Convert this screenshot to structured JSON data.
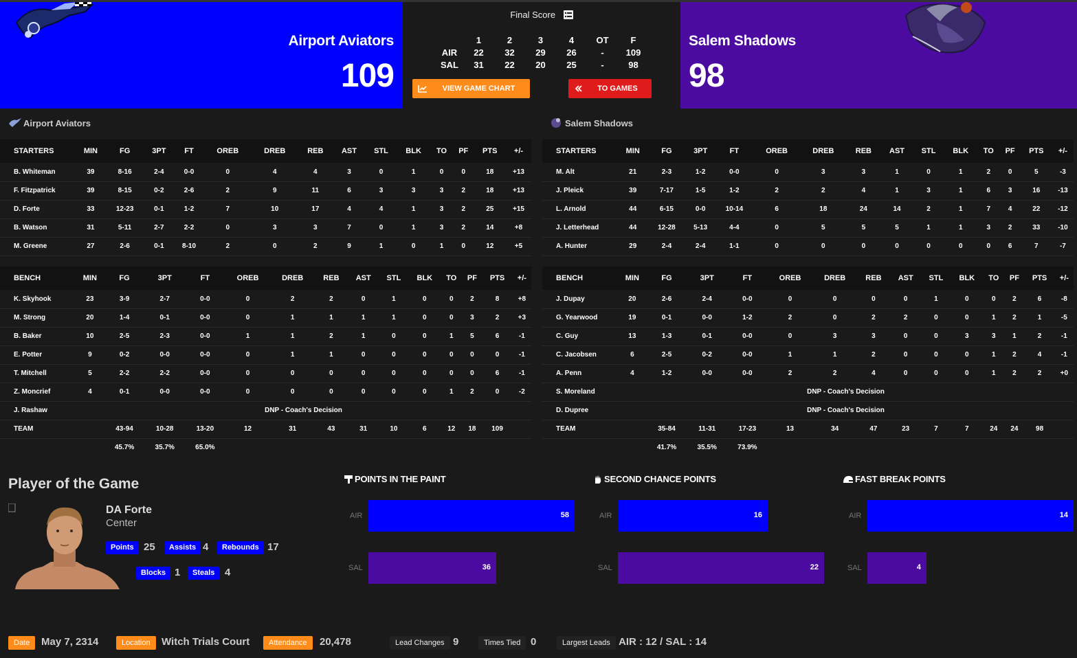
{
  "colors": {
    "home": "#0000ff",
    "away": "#4b0aa0",
    "orange": "#ff8c1a",
    "red": "#e01b1b"
  },
  "header": {
    "home_name": "Airport Aviators",
    "home_score": "109",
    "away_name": "Salem Shadows",
    "away_score": "98",
    "final_label": "Final Score",
    "linescore": {
      "headers": [
        "",
        "1",
        "2",
        "3",
        "4",
        "OT",
        "F"
      ],
      "rows": [
        [
          "AIR",
          "22",
          "32",
          "29",
          "26",
          "-",
          "109"
        ],
        [
          "SAL",
          "31",
          "22",
          "20",
          "25",
          "-",
          "98"
        ]
      ]
    },
    "chart_button": "VIEW GAME CHART",
    "games_button": "TO GAMES"
  },
  "home_box": {
    "title": "Airport Aviators",
    "starters_header": [
      "STARTERS",
      "MIN",
      "FG",
      "3PT",
      "FT",
      "OREB",
      "DREB",
      "REB",
      "AST",
      "STL",
      "BLK",
      "TO",
      "PF",
      "PTS",
      "+/-"
    ],
    "starters": [
      [
        "B. Whiteman",
        "39",
        "8-16",
        "2-4",
        "0-0",
        "0",
        "4",
        "4",
        "3",
        "0",
        "1",
        "0",
        "0",
        "18",
        "+13"
      ],
      [
        "F. Fitzpatrick",
        "39",
        "8-15",
        "0-2",
        "2-6",
        "2",
        "9",
        "11",
        "6",
        "3",
        "3",
        "3",
        "2",
        "18",
        "+13"
      ],
      [
        "D. Forte",
        "33",
        "12-23",
        "0-1",
        "1-2",
        "7",
        "10",
        "17",
        "4",
        "4",
        "1",
        "3",
        "2",
        "25",
        "+15"
      ],
      [
        "B. Watson",
        "31",
        "5-11",
        "2-7",
        "2-2",
        "0",
        "3",
        "3",
        "7",
        "0",
        "1",
        "3",
        "2",
        "14",
        "+8"
      ],
      [
        "M. Greene",
        "27",
        "2-6",
        "0-1",
        "8-10",
        "2",
        "0",
        "2",
        "9",
        "1",
        "0",
        "1",
        "0",
        "12",
        "+5"
      ]
    ],
    "bench_header": [
      "BENCH",
      "MIN",
      "FG",
      "3PT",
      "FT",
      "OREB",
      "DREB",
      "REB",
      "AST",
      "STL",
      "BLK",
      "TO",
      "PF",
      "PTS",
      "+/-"
    ],
    "bench": [
      [
        "K. Skyhook",
        "23",
        "3-9",
        "2-7",
        "0-0",
        "0",
        "2",
        "2",
        "0",
        "1",
        "0",
        "0",
        "2",
        "8",
        "+8"
      ],
      [
        "M. Strong",
        "20",
        "1-4",
        "0-1",
        "0-0",
        "0",
        "1",
        "1",
        "1",
        "1",
        "0",
        "0",
        "3",
        "2",
        "+3"
      ],
      [
        "B. Baker",
        "10",
        "2-5",
        "2-3",
        "0-0",
        "1",
        "1",
        "2",
        "1",
        "0",
        "0",
        "1",
        "5",
        "6",
        "-1"
      ],
      [
        "E. Potter",
        "9",
        "0-2",
        "0-0",
        "0-0",
        "0",
        "1",
        "1",
        "0",
        "0",
        "0",
        "0",
        "0",
        "0",
        "-1"
      ],
      [
        "T. Mitchell",
        "5",
        "2-2",
        "2-2",
        "0-0",
        "0",
        "0",
        "0",
        "0",
        "0",
        "0",
        "0",
        "0",
        "6",
        "-1"
      ],
      [
        "Z. Moncrief",
        "4",
        "0-1",
        "0-0",
        "0-0",
        "0",
        "0",
        "0",
        "0",
        "0",
        "0",
        "1",
        "2",
        "0",
        "-2"
      ]
    ],
    "dnp": [
      {
        "name": "J. Rashaw",
        "reason": "DNP - Coach's Decision"
      }
    ],
    "team": [
      "TEAM",
      "",
      "43-94",
      "10-28",
      "13-20",
      "12",
      "31",
      "43",
      "31",
      "10",
      "6",
      "12",
      "18",
      "109",
      ""
    ],
    "pct": [
      "",
      "",
      "45.7%",
      "35.7%",
      "65.0%",
      "",
      "",
      "",
      "",
      "",
      "",
      "",
      "",
      "",
      ""
    ]
  },
  "away_box": {
    "title": "Salem Shadows",
    "starters_header": [
      "STARTERS",
      "MIN",
      "FG",
      "3PT",
      "FT",
      "OREB",
      "DREB",
      "REB",
      "AST",
      "STL",
      "BLK",
      "TO",
      "PF",
      "PTS",
      "+/-"
    ],
    "starters": [
      [
        "M. Alt",
        "21",
        "2-3",
        "1-2",
        "0-0",
        "0",
        "3",
        "3",
        "1",
        "0",
        "1",
        "2",
        "0",
        "5",
        "-3"
      ],
      [
        "J. Pleick",
        "39",
        "7-17",
        "1-5",
        "1-2",
        "2",
        "2",
        "4",
        "1",
        "3",
        "1",
        "6",
        "3",
        "16",
        "-13"
      ],
      [
        "L. Arnold",
        "44",
        "6-15",
        "0-0",
        "10-14",
        "6",
        "18",
        "24",
        "14",
        "2",
        "1",
        "7",
        "4",
        "22",
        "-12"
      ],
      [
        "J. Letterhead",
        "44",
        "12-28",
        "5-13",
        "4-4",
        "0",
        "5",
        "5",
        "5",
        "1",
        "1",
        "3",
        "2",
        "33",
        "-10"
      ],
      [
        "A. Hunter",
        "29",
        "2-4",
        "2-4",
        "1-1",
        "0",
        "0",
        "0",
        "0",
        "0",
        "0",
        "0",
        "6",
        "7",
        "-7"
      ]
    ],
    "bench_header": [
      "BENCH",
      "MIN",
      "FG",
      "3PT",
      "FT",
      "OREB",
      "DREB",
      "REB",
      "AST",
      "STL",
      "BLK",
      "TO",
      "PF",
      "PTS",
      "+/-"
    ],
    "bench": [
      [
        "J. Dupay",
        "20",
        "2-6",
        "2-4",
        "0-0",
        "0",
        "0",
        "0",
        "0",
        "1",
        "0",
        "0",
        "2",
        "6",
        "-8"
      ],
      [
        "G. Yearwood",
        "19",
        "0-1",
        "0-0",
        "1-2",
        "2",
        "0",
        "2",
        "2",
        "0",
        "0",
        "1",
        "2",
        "1",
        "-5"
      ],
      [
        "C. Guy",
        "13",
        "1-3",
        "0-1",
        "0-0",
        "0",
        "3",
        "3",
        "0",
        "0",
        "3",
        "3",
        "1",
        "2",
        "-1"
      ],
      [
        "C. Jacobsen",
        "6",
        "2-5",
        "0-2",
        "0-0",
        "1",
        "1",
        "2",
        "0",
        "0",
        "0",
        "1",
        "2",
        "4",
        "-1"
      ],
      [
        "A. Penn",
        "4",
        "1-2",
        "0-0",
        "0-0",
        "2",
        "2",
        "4",
        "0",
        "0",
        "0",
        "1",
        "2",
        "2",
        "+0"
      ]
    ],
    "dnp": [
      {
        "name": "S. Moreland",
        "reason": "DNP - Coach's Decision"
      },
      {
        "name": "D. Dupree",
        "reason": "DNP - Coach's Decision"
      }
    ],
    "team": [
      "TEAM",
      "",
      "35-84",
      "11-31",
      "17-23",
      "13",
      "34",
      "47",
      "23",
      "7",
      "7",
      "24",
      "24",
      "98",
      ""
    ],
    "pct": [
      "",
      "",
      "41.7%",
      "35.5%",
      "73.9%",
      "",
      "",
      "",
      "",
      "",
      "",
      "",
      "",
      "",
      ""
    ]
  },
  "potg": {
    "title": "Player of the Game",
    "name": "DA Forte",
    "position": "Center",
    "stats": [
      {
        "label": "Points",
        "value": "25"
      },
      {
        "label": "Assists",
        "value": "4"
      },
      {
        "label": "Rebounds",
        "value": "17"
      },
      {
        "label": "Blocks",
        "value": "1"
      },
      {
        "label": "Steals",
        "value": "4"
      }
    ]
  },
  "charts": [
    {
      "title": "POINTS IN THE PAINT",
      "icon": "paint-icon",
      "air": 58,
      "sal": 36,
      "air_label": "AIR",
      "sal_label": "SAL"
    },
    {
      "title": "SECOND CHANCE POINTS",
      "icon": "hand-icon",
      "air": 16,
      "sal": 22,
      "air_label": "AIR",
      "sal_label": "SAL"
    },
    {
      "title": "FAST BREAK POINTS",
      "icon": "helmet-icon",
      "air": 14,
      "sal": 4,
      "air_label": "AIR",
      "sal_label": "SAL"
    }
  ],
  "footer": {
    "date_label": "Date",
    "date": "May 7, 2314",
    "location_label": "Location",
    "location": "Witch Trials Court",
    "attendance_label": "Attendance",
    "attendance": "20,478",
    "lead_changes_label": "Lead Changes",
    "lead_changes": "9",
    "times_tied_label": "Times Tied",
    "times_tied": "0",
    "largest_leads_label": "Largest Leads",
    "largest_leads": "AIR : 12 / SAL : 14"
  }
}
